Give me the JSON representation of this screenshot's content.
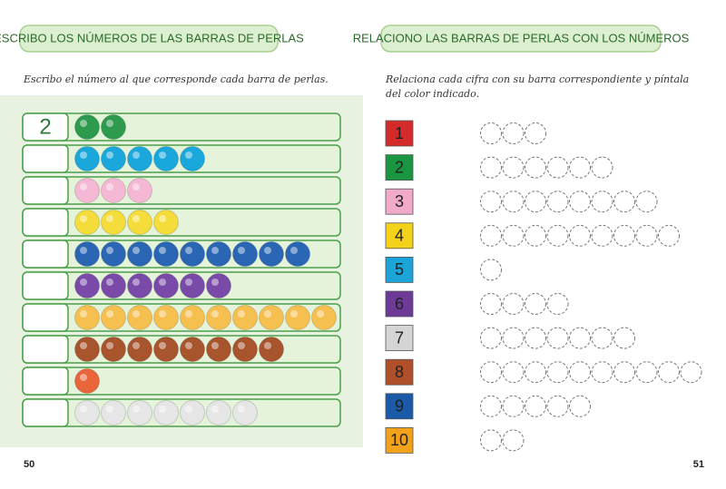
{
  "left": {
    "heading": "ESCRIBO LOS NÚMEROS DE LAS BARRAS DE PERLAS",
    "instruction": "Escribo el número al que corresponde cada barra de perlas.",
    "rows": [
      {
        "answer": "2",
        "beads": 2,
        "color": "#2e9a4e"
      },
      {
        "beads": 5,
        "color": "#1aa8dc"
      },
      {
        "beads": 3,
        "color": "#f4b8d4"
      },
      {
        "beads": 4,
        "color": "#f4dc3a"
      },
      {
        "beads": 9,
        "color": "#2a66b4"
      },
      {
        "beads": 6,
        "color": "#7a4aa8"
      },
      {
        "beads": 10,
        "color": "#f6c050"
      },
      {
        "beads": 8,
        "color": "#a8552e"
      },
      {
        "beads": 1,
        "color": "#e8663a"
      },
      {
        "beads": 7,
        "color": "#e6e6e6"
      }
    ],
    "page": "50"
  },
  "right": {
    "heading": "RELACIONO LAS BARRAS DE PERLAS CON LOS NÚMEROS",
    "instruction": [
      "Relaciona cada cifra con su barra correspondiente y píntala",
      "del color indicado."
    ],
    "numbers": [
      {
        "label": "1",
        "color": "#d42a2a"
      },
      {
        "label": "2",
        "color": "#1a9642"
      },
      {
        "label": "3",
        "color": "#f2aacb"
      },
      {
        "label": "4",
        "color": "#f4d21a"
      },
      {
        "label": "5",
        "color": "#1ba4d8"
      },
      {
        "label": "6",
        "color": "#6e3a98"
      },
      {
        "label": "7",
        "color": "#d4d4d4"
      },
      {
        "label": "8",
        "color": "#b0502a"
      },
      {
        "label": "9",
        "color": "#1a5aa8"
      },
      {
        "label": "10",
        "color": "#f2a21a"
      }
    ],
    "circles": [
      3,
      6,
      8,
      9,
      1,
      4,
      7,
      10,
      5,
      2
    ],
    "page": "51"
  }
}
